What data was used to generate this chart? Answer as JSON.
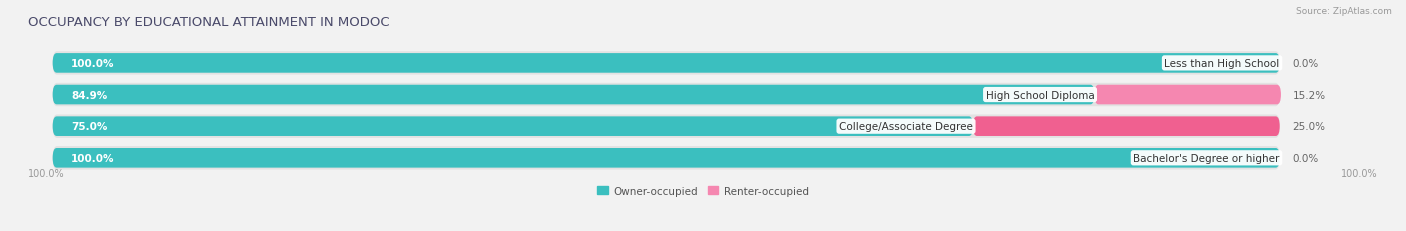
{
  "title": "OCCUPANCY BY EDUCATIONAL ATTAINMENT IN MODOC",
  "source": "Source: ZipAtlas.com",
  "categories": [
    "Less than High School",
    "High School Diploma",
    "College/Associate Degree",
    "Bachelor's Degree or higher"
  ],
  "owner_pct": [
    100.0,
    84.9,
    75.0,
    100.0
  ],
  "renter_pct": [
    0.0,
    15.2,
    25.0,
    0.0
  ],
  "owner_color": "#3bbfbf",
  "renter_color": "#f587b0",
  "renter_color_2": "#f06090",
  "background_color": "#f2f2f2",
  "bar_bg_color": "#e2e2e2",
  "figsize": [
    14.06,
    2.32
  ],
  "dpi": 100,
  "title_fontsize": 9.5,
  "label_fontsize": 7.5,
  "pct_fontsize": 7.5,
  "legend_fontsize": 7.5,
  "axis_tick_fontsize": 7.0
}
